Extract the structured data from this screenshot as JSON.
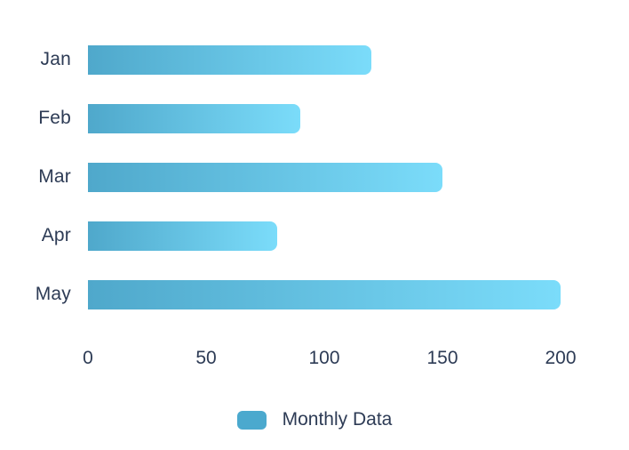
{
  "chart_data": {
    "type": "bar",
    "orientation": "horizontal",
    "title": "",
    "xlabel": "",
    "ylabel": "",
    "categories": [
      "Jan",
      "Feb",
      "Mar",
      "Apr",
      "May"
    ],
    "values": [
      120,
      90,
      150,
      80,
      200
    ],
    "x_ticks": [
      0,
      50,
      100,
      150,
      200
    ],
    "xlim": [
      0,
      200
    ],
    "grid": false,
    "legend": "Monthly Data",
    "legend_position": "bottom-center",
    "colors": {
      "background": "#ffffff",
      "text": "#2d3b55",
      "bar_gradient_start": "#4fa8cb",
      "bar_gradient_end": "#7bdcfa",
      "legend_swatch": "#4ba9ce"
    }
  }
}
